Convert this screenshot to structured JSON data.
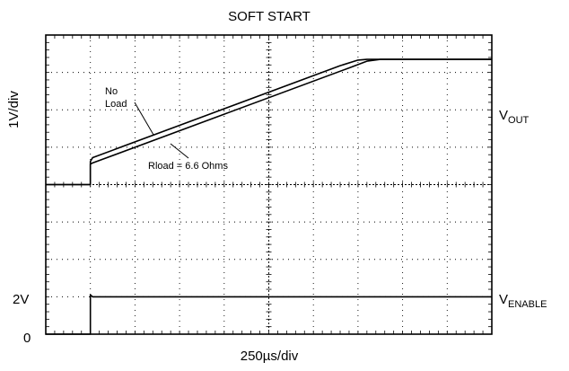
{
  "chart_data": {
    "type": "line",
    "title": "SOFT START",
    "xlabel": "250µs/div",
    "ylabel": "1V/div",
    "xlim": [
      0,
      10
    ],
    "ylim": [
      0,
      8
    ],
    "grid": true,
    "y_ticks": [
      {
        "value": 0,
        "label": "0"
      },
      {
        "value": 1,
        "label": "2V"
      }
    ],
    "channel_labels": [
      {
        "name": "V",
        "sub": "OUT"
      },
      {
        "name": "V",
        "sub": "ENABLE"
      }
    ],
    "annotations": [
      {
        "line1": "No",
        "line2": "Load"
      },
      {
        "text": "Rload = 6.6 Ohms"
      }
    ],
    "series": [
      {
        "x": [
          0,
          1.0,
          1.0,
          1.05,
          6.6,
          7.0,
          7.2,
          10
        ],
        "y": [
          4.0,
          4.0,
          4.62,
          4.72,
          7.18,
          7.33,
          7.35,
          7.35
        ]
      },
      {
        "x": [
          0,
          1.0,
          1.0,
          1.05,
          6.8,
          7.2,
          7.5,
          10
        ],
        "y": [
          4.0,
          4.0,
          4.55,
          4.58,
          7.12,
          7.3,
          7.35,
          7.35
        ]
      },
      {
        "x": [
          0,
          1.0,
          1.0,
          1.05,
          10
        ],
        "y": [
          0,
          0,
          1.05,
          1.0,
          1.0
        ]
      }
    ]
  }
}
